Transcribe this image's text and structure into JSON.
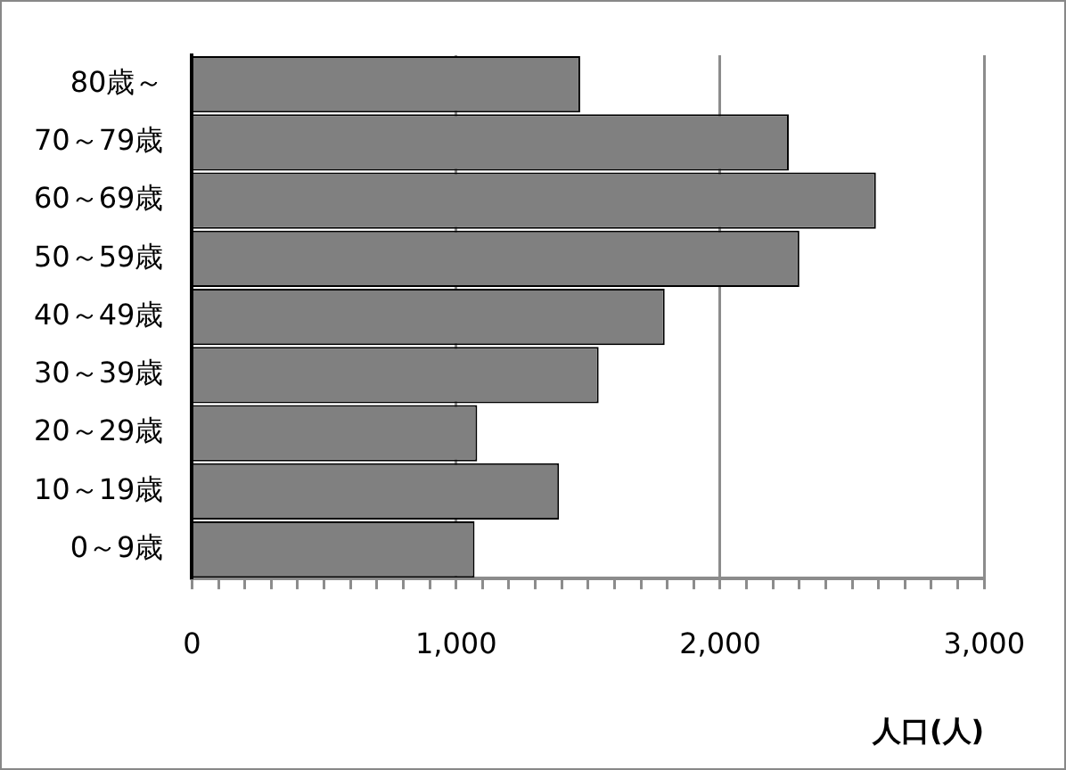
{
  "chart_data": {
    "type": "bar",
    "orientation": "horizontal",
    "categories": [
      "80歳～",
      "70～79歳",
      "60～69歳",
      "50～59歳",
      "40～49歳",
      "30～39歳",
      "20～29歳",
      "10～19歳",
      "0～9歳"
    ],
    "values": [
      1470,
      2260,
      2590,
      2300,
      1790,
      1540,
      1080,
      1390,
      1070
    ],
    "color": "#808080",
    "xlabel": "人口(人)",
    "xlim": [
      0,
      3000
    ],
    "xticks": [
      0,
      {
        "value": 100,
        "label": null
      },
      {
        "value": 200,
        "label": null
      },
      {
        "value": 300,
        "label": null
      },
      {
        "value": 400,
        "label": null
      },
      {
        "value": 500,
        "label": null
      },
      {
        "value": 600,
        "label": null
      },
      {
        "value": 700,
        "label": null
      },
      {
        "value": 800,
        "label": null
      },
      {
        "value": 900,
        "label": null
      },
      {
        "value": 1000,
        "label": "1,000"
      },
      {
        "value": 1100,
        "label": null
      },
      {
        "value": 1200,
        "label": null
      },
      {
        "value": 1300,
        "label": null
      },
      {
        "value": 1400,
        "label": null
      },
      {
        "value": 1500,
        "label": null
      },
      {
        "value": 1600,
        "label": null
      },
      {
        "value": 1700,
        "label": null
      },
      {
        "value": 1800,
        "label": null
      },
      {
        "value": 1900,
        "label": null
      },
      {
        "value": 2000,
        "label": "2,000"
      },
      {
        "value": 2100,
        "label": null
      },
      {
        "value": 2200,
        "label": null
      },
      {
        "value": 2300,
        "label": null
      },
      {
        "value": 2400,
        "label": null
      },
      {
        "value": 2500,
        "label": null
      },
      {
        "value": 2600,
        "label": null
      },
      {
        "value": 2700,
        "label": null
      },
      {
        "value": 2800,
        "label": null
      },
      {
        "value": 2900,
        "label": null
      },
      {
        "value": 3000,
        "label": "3,000"
      }
    ],
    "grid": "x",
    "legend": false
  }
}
